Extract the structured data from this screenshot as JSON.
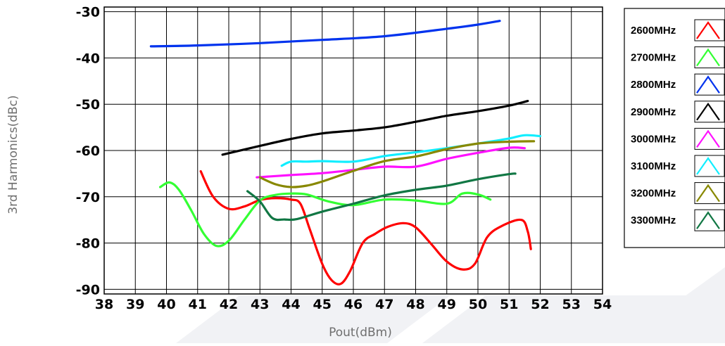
{
  "chart_data": {
    "type": "line",
    "title": "",
    "xlabel": "Pout(dBm)",
    "ylabel": "3rd Harmonics(dBc)",
    "xlim": [
      38,
      54
    ],
    "ylim": [
      -91,
      -29
    ],
    "x_ticks": [
      38,
      39,
      40,
      41,
      42,
      43,
      44,
      45,
      46,
      47,
      48,
      49,
      50,
      51,
      52,
      53,
      54
    ],
    "y_ticks": [
      -30,
      -40,
      -50,
      -60,
      -70,
      -80,
      -90
    ],
    "grid": true,
    "legend_position": "right",
    "series": [
      {
        "name": "2600MHz",
        "color": "#ff0000",
        "points": [
          [
            41.1,
            -64.5
          ],
          [
            41.5,
            -70
          ],
          [
            42,
            -72.6
          ],
          [
            42.5,
            -72.1
          ],
          [
            43,
            -70.7
          ],
          [
            43.5,
            -70.3
          ],
          [
            44,
            -70.6
          ],
          [
            44.3,
            -71.5
          ],
          [
            44.6,
            -77
          ],
          [
            45,
            -84.5
          ],
          [
            45.3,
            -88
          ],
          [
            45.6,
            -88.8
          ],
          [
            45.9,
            -86
          ],
          [
            46.3,
            -80
          ],
          [
            46.7,
            -78
          ],
          [
            47.1,
            -76.5
          ],
          [
            47.6,
            -75.7
          ],
          [
            48,
            -76.6
          ],
          [
            48.5,
            -80.2
          ],
          [
            49,
            -84
          ],
          [
            49.5,
            -85.7
          ],
          [
            49.9,
            -84.5
          ],
          [
            50.3,
            -78.7
          ],
          [
            50.8,
            -76.2
          ],
          [
            51.4,
            -75
          ],
          [
            51.6,
            -77.5
          ],
          [
            51.7,
            -81.3
          ]
        ]
      },
      {
        "name": "2700MHz",
        "color": "#33ff33",
        "points": [
          [
            39.8,
            -67.9
          ],
          [
            40.1,
            -66.9
          ],
          [
            40.4,
            -68.5
          ],
          [
            40.8,
            -73
          ],
          [
            41.2,
            -78
          ],
          [
            41.6,
            -80.6
          ],
          [
            42,
            -79.5
          ],
          [
            42.5,
            -75
          ],
          [
            43,
            -70.8
          ],
          [
            43.5,
            -69.6
          ],
          [
            44,
            -69.3
          ],
          [
            44.5,
            -69.5
          ],
          [
            45.2,
            -71
          ],
          [
            46,
            -71.8
          ],
          [
            47,
            -70.6
          ],
          [
            48,
            -70.8
          ],
          [
            49,
            -71.5
          ],
          [
            49.5,
            -69.3
          ],
          [
            50,
            -69.5
          ],
          [
            50.4,
            -70.6
          ]
        ]
      },
      {
        "name": "2800MHz",
        "color": "#0033ee",
        "points": [
          [
            39.5,
            -37.5
          ],
          [
            41,
            -37.3
          ],
          [
            43,
            -36.8
          ],
          [
            45,
            -36.1
          ],
          [
            47,
            -35.3
          ],
          [
            49,
            -33.7
          ],
          [
            50,
            -32.8
          ],
          [
            50.7,
            -32
          ]
        ]
      },
      {
        "name": "2900MHz",
        "color": "#000000",
        "points": [
          [
            41.8,
            -60.9
          ],
          [
            43,
            -59
          ],
          [
            44,
            -57.5
          ],
          [
            45,
            -56.3
          ],
          [
            46,
            -55.7
          ],
          [
            47,
            -55
          ],
          [
            48,
            -53.8
          ],
          [
            49,
            -52.5
          ],
          [
            50,
            -51.5
          ],
          [
            51,
            -50.3
          ],
          [
            51.6,
            -49.3
          ]
        ]
      },
      {
        "name": "3000MHz",
        "color": "#ff11ff",
        "points": [
          [
            42.9,
            -65.8
          ],
          [
            44,
            -65.3
          ],
          [
            45,
            -64.9
          ],
          [
            46,
            -64.2
          ],
          [
            47,
            -63.5
          ],
          [
            48,
            -63.5
          ],
          [
            49,
            -61.8
          ],
          [
            50,
            -60.5
          ],
          [
            51,
            -59.4
          ],
          [
            51.5,
            -59.5
          ]
        ]
      },
      {
        "name": "3100MHz",
        "color": "#11eeff",
        "points": [
          [
            43.7,
            -63.3
          ],
          [
            44,
            -62.4
          ],
          [
            44.5,
            -62.4
          ],
          [
            45,
            -62.3
          ],
          [
            46,
            -62.4
          ],
          [
            47,
            -61.2
          ],
          [
            48,
            -60.4
          ],
          [
            49,
            -59.5
          ],
          [
            50,
            -58.5
          ],
          [
            51,
            -57.4
          ],
          [
            51.5,
            -56.7
          ],
          [
            52,
            -56.9
          ]
        ]
      },
      {
        "name": "3200MHz",
        "color": "#888800",
        "points": [
          [
            43,
            -65.8
          ],
          [
            43.5,
            -67.3
          ],
          [
            44,
            -67.9
          ],
          [
            44.5,
            -67.6
          ],
          [
            45,
            -66.7
          ],
          [
            46,
            -64.4
          ],
          [
            47,
            -62.3
          ],
          [
            48,
            -61.3
          ],
          [
            49,
            -59.7
          ],
          [
            50,
            -58.5
          ],
          [
            51,
            -58.1
          ],
          [
            51.8,
            -58
          ]
        ]
      },
      {
        "name": "3300MHz",
        "color": "#117744",
        "points": [
          [
            42.6,
            -68.8
          ],
          [
            43,
            -71
          ],
          [
            43.4,
            -74.6
          ],
          [
            43.8,
            -74.9
          ],
          [
            44.2,
            -74.8
          ],
          [
            45,
            -73.2
          ],
          [
            46,
            -71.5
          ],
          [
            47,
            -69.7
          ],
          [
            48,
            -68.5
          ],
          [
            49,
            -67.6
          ],
          [
            50,
            -66.2
          ],
          [
            51,
            -65.1
          ],
          [
            51.2,
            -65
          ]
        ]
      }
    ]
  }
}
